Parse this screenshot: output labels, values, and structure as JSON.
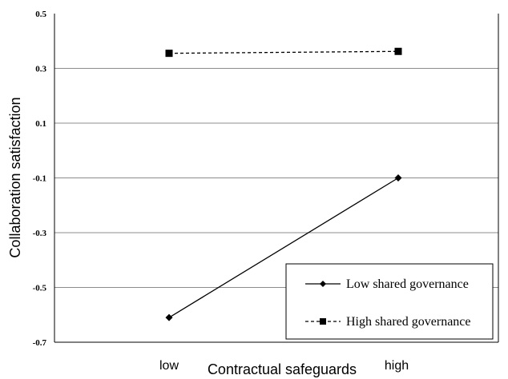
{
  "chart_data": {
    "type": "line",
    "title": "",
    "xlabel": "Contractual safeguards",
    "ylabel": "Collaboration satisfaction",
    "categories": [
      "low",
      "high"
    ],
    "ylim": [
      -0.7,
      0.5
    ],
    "yticks": [
      "0.5",
      "0.3",
      "0.1",
      "-0.1",
      "-0.3",
      "-0.5",
      "-0.7"
    ],
    "grid": true,
    "legend_position": "bottom-right",
    "series": [
      {
        "name": "Low shared governance",
        "values": [
          -0.61,
          -0.1
        ],
        "line_style": "solid",
        "marker": "diamond",
        "color": "#000000"
      },
      {
        "name": "High shared governance",
        "values": [
          0.355,
          0.362
        ],
        "line_style": "dashed",
        "marker": "square",
        "color": "#000000"
      }
    ]
  }
}
